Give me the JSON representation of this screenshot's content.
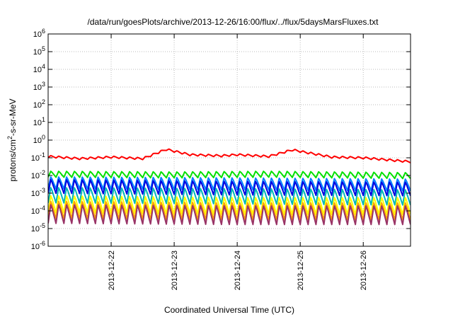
{
  "chart_data": {
    "type": "line",
    "title": "/data/run/goesPlots/archive/2013-12-26/16:00/flux/../flux/5daysMarsFluxes.txt",
    "xlabel": "Coordinated Universal Time (UTC)",
    "ylabel": {
      "prefix": "protons/cm",
      "sup": "2",
      "suffix": "-s-sr-MeV"
    },
    "yscale": "log",
    "ylim": [
      1e-06,
      1000000.0
    ],
    "yticks": [
      {
        "base": "10",
        "exp": "-6",
        "value": 1e-06
      },
      {
        "base": "10",
        "exp": "-5",
        "value": 1e-05
      },
      {
        "base": "10",
        "exp": "-4",
        "value": 0.0001
      },
      {
        "base": "10",
        "exp": "-3",
        "value": 0.001
      },
      {
        "base": "10",
        "exp": "-2",
        "value": 0.01
      },
      {
        "base": "10",
        "exp": "-1",
        "value": 0.1
      },
      {
        "base": "10",
        "exp": "0",
        "value": 1
      },
      {
        "base": "10",
        "exp": "1",
        "value": 10
      },
      {
        "base": "10",
        "exp": "2",
        "value": 100
      },
      {
        "base": "10",
        "exp": "3",
        "value": 1000
      },
      {
        "base": "10",
        "exp": "4",
        "value": 10000
      },
      {
        "base": "10",
        "exp": "5",
        "value": 100000
      },
      {
        "base": "10",
        "exp": "6",
        "value": 1000000
      }
    ],
    "xlim": [
      "2013-12-21T00:00",
      "2013-12-26T18:00"
    ],
    "xticks": [
      {
        "label": "2013-12-22",
        "date": "2013-12-22T00:00"
      },
      {
        "label": "2013-12-23",
        "date": "2013-12-23T00:00"
      },
      {
        "label": "2013-12-24",
        "date": "2013-12-24T00:00"
      },
      {
        "label": "2013-12-25",
        "date": "2013-12-25T00:00"
      },
      {
        "label": "2013-12-26",
        "date": "2013-12-26T00:00"
      }
    ],
    "grid": true,
    "sawtooth_period_hours": 3,
    "series": [
      {
        "color": "#ff0000",
        "period_hours": 3,
        "amplitude_decades": 0.12,
        "baseline": [
          {
            "t": "2013-12-21T00:00",
            "y": 0.12
          },
          {
            "t": "2013-12-21T12:00",
            "y": 0.09
          },
          {
            "t": "2013-12-22T00:00",
            "y": 0.11
          },
          {
            "t": "2013-12-22T12:00",
            "y": 0.09
          },
          {
            "t": "2013-12-22T21:00",
            "y": 0.3
          },
          {
            "t": "2013-12-23T06:00",
            "y": 0.15
          },
          {
            "t": "2013-12-23T18:00",
            "y": 0.13
          },
          {
            "t": "2013-12-24T00:00",
            "y": 0.15
          },
          {
            "t": "2013-12-24T12:00",
            "y": 0.12
          },
          {
            "t": "2013-12-24T21:00",
            "y": 0.28
          },
          {
            "t": "2013-12-25T12:00",
            "y": 0.11
          },
          {
            "t": "2013-12-26T00:00",
            "y": 0.1
          },
          {
            "t": "2013-12-26T18:00",
            "y": 0.06
          }
        ]
      },
      {
        "color": "#00e000",
        "period_hours": 3,
        "amplitude_decades": 0.35,
        "baseline": [
          {
            "t": "2013-12-21T00:00",
            "y": 0.012
          },
          {
            "t": "2013-12-23T00:00",
            "y": 0.011
          },
          {
            "t": "2013-12-24T12:00",
            "y": 0.012
          },
          {
            "t": "2013-12-26T18:00",
            "y": 0.01
          }
        ]
      },
      {
        "color": "#0080ff",
        "period_hours": 3,
        "amplitude_decades": 0.7,
        "baseline": [
          {
            "t": "2013-12-21T00:00",
            "y": 0.004
          },
          {
            "t": "2013-12-24T00:00",
            "y": 0.0035
          },
          {
            "t": "2013-12-26T18:00",
            "y": 0.003
          }
        ]
      },
      {
        "color": "#0000e0",
        "period_hours": 3,
        "amplitude_decades": 0.8,
        "baseline": [
          {
            "t": "2013-12-21T00:00",
            "y": 0.0025
          },
          {
            "t": "2013-12-24T00:00",
            "y": 0.002
          },
          {
            "t": "2013-12-26T18:00",
            "y": 0.0018
          }
        ]
      },
      {
        "color": "#00b8b8",
        "period_hours": 3,
        "amplitude_decades": 0.9,
        "baseline": [
          {
            "t": "2013-12-21T00:00",
            "y": 0.0008
          },
          {
            "t": "2013-12-24T00:00",
            "y": 0.0007
          },
          {
            "t": "2013-12-26T18:00",
            "y": 0.0006
          }
        ]
      },
      {
        "color": "#ffff00",
        "period_hours": 3,
        "amplitude_decades": 1.0,
        "baseline": [
          {
            "t": "2013-12-21T00:00",
            "y": 0.00025
          },
          {
            "t": "2013-12-24T00:00",
            "y": 0.0002
          },
          {
            "t": "2013-12-26T18:00",
            "y": 0.0002
          }
        ]
      },
      {
        "color": "#ffa500",
        "period_hours": 3,
        "amplitude_decades": 1.0,
        "baseline": [
          {
            "t": "2013-12-21T00:00",
            "y": 0.00012
          },
          {
            "t": "2013-12-24T00:00",
            "y": 0.0001
          },
          {
            "t": "2013-12-26T18:00",
            "y": 0.0001
          }
        ]
      },
      {
        "color": "#993366",
        "period_hours": 3,
        "amplitude_decades": 1.1,
        "baseline": [
          {
            "t": "2013-12-21T00:00",
            "y": 7e-05
          },
          {
            "t": "2013-12-24T00:00",
            "y": 6e-05
          },
          {
            "t": "2013-12-26T18:00",
            "y": 6e-05
          }
        ]
      }
    ]
  }
}
